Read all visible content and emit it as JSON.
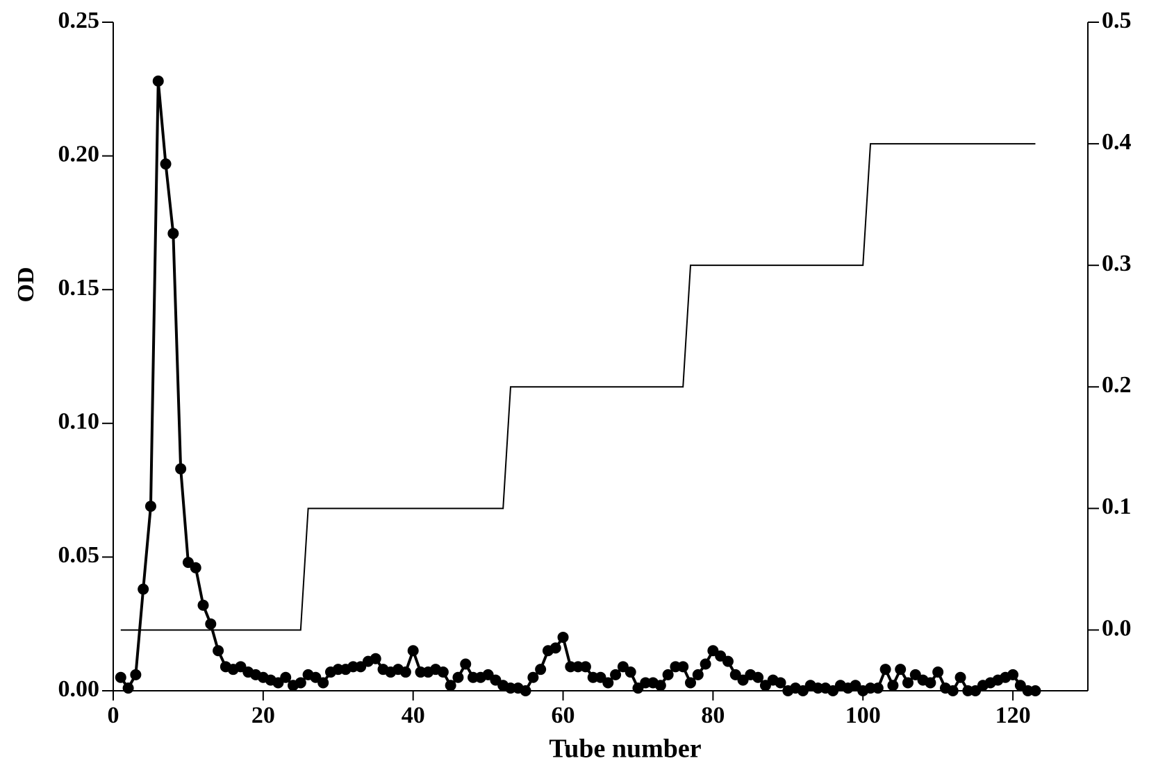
{
  "chart_data": {
    "type": "line",
    "xlabel": "Tube number",
    "ylabel": "OD",
    "xlim": [
      0,
      130
    ],
    "xticks": [
      0,
      20,
      40,
      60,
      80,
      100,
      120
    ],
    "ylim": [
      0,
      0.25
    ],
    "yticks": [
      {
        "value": 0,
        "label": "0.00"
      },
      {
        "value": 0.05,
        "label": "0.05"
      },
      {
        "value": 0.1,
        "label": "0.10"
      },
      {
        "value": 0.15,
        "label": "0.15"
      },
      {
        "value": 0.2,
        "label": "0.20"
      },
      {
        "value": 0.25,
        "label": "0.25"
      }
    ],
    "y2lim": [
      -0.05,
      0.5
    ],
    "y2ticks": [
      {
        "value": 0,
        "label": "0.0"
      },
      0.1,
      0.2,
      0.3,
      0.4,
      0.5
    ],
    "series": [
      {
        "color": "#000000",
        "marker": "circle",
        "x": [
          1,
          2,
          3,
          4,
          5,
          6,
          7,
          8,
          9,
          10,
          11,
          12,
          13,
          14,
          15,
          16,
          17,
          18,
          19,
          20,
          21,
          22,
          23,
          24,
          25,
          26,
          27,
          28,
          29,
          30,
          31,
          32,
          33,
          34,
          35,
          36,
          37,
          38,
          39,
          40,
          41,
          42,
          43,
          44,
          45,
          46,
          47,
          48,
          49,
          50,
          51,
          52,
          53,
          54,
          55,
          56,
          57,
          58,
          59,
          60,
          61,
          62,
          63,
          64,
          65,
          66,
          67,
          68,
          69,
          70,
          71,
          72,
          73,
          74,
          75,
          76,
          77,
          78,
          79,
          80,
          81,
          82,
          83,
          84,
          85,
          86,
          87,
          88,
          89,
          90,
          91,
          92,
          93,
          94,
          95,
          96,
          97,
          98,
          99,
          100,
          101,
          102,
          103,
          104,
          105,
          106,
          107,
          108,
          109,
          110,
          111,
          112,
          113,
          114,
          115,
          116,
          117,
          118,
          119,
          120,
          121,
          122,
          123
        ],
        "values": [
          0.005,
          0.001,
          0.006,
          0.038,
          0.069,
          0.228,
          0.197,
          0.171,
          0.083,
          0.048,
          0.046,
          0.032,
          0.025,
          0.015,
          0.009,
          0.008,
          0.009,
          0.007,
          0.006,
          0.005,
          0.004,
          0.003,
          0.005,
          0.002,
          0.003,
          0.006,
          0.005,
          0.003,
          0.007,
          0.008,
          0.008,
          0.009,
          0.009,
          0.011,
          0.012,
          0.008,
          0.007,
          0.008,
          0.007,
          0.015,
          0.007,
          0.007,
          0.008,
          0.007,
          0.002,
          0.005,
          0.01,
          0.005,
          0.005,
          0.006,
          0.004,
          0.002,
          0.001,
          0.001,
          0.0,
          0.005,
          0.008,
          0.015,
          0.016,
          0.02,
          0.009,
          0.009,
          0.009,
          0.005,
          0.005,
          0.003,
          0.006,
          0.009,
          0.007,
          0.001,
          0.003,
          0.003,
          0.002,
          0.006,
          0.009,
          0.009,
          0.003,
          0.006,
          0.01,
          0.015,
          0.013,
          0.011,
          0.006,
          0.004,
          0.006,
          0.005,
          0.002,
          0.004,
          0.003,
          0.0,
          0.001,
          0.0,
          0.002,
          0.001,
          0.001,
          0.0,
          0.002,
          0.001,
          0.002,
          0.0,
          0.001,
          0.001,
          0.008,
          0.002,
          0.008,
          0.003,
          0.006,
          0.004,
          0.003,
          0.007,
          0.001,
          0.0,
          0.005,
          0.0,
          0.0,
          0.002,
          0.003,
          0.004,
          0.005,
          0.006,
          0.002,
          0.0,
          0.0
        ]
      },
      {
        "color": "#000000",
        "axis": "y2",
        "x": [
          1,
          25,
          26,
          52,
          53,
          76,
          77,
          100,
          101,
          123
        ],
        "values": [
          0.0,
          0.0,
          0.1,
          0.1,
          0.2,
          0.2,
          0.3,
          0.3,
          0.4,
          0.4
        ]
      }
    ]
  }
}
